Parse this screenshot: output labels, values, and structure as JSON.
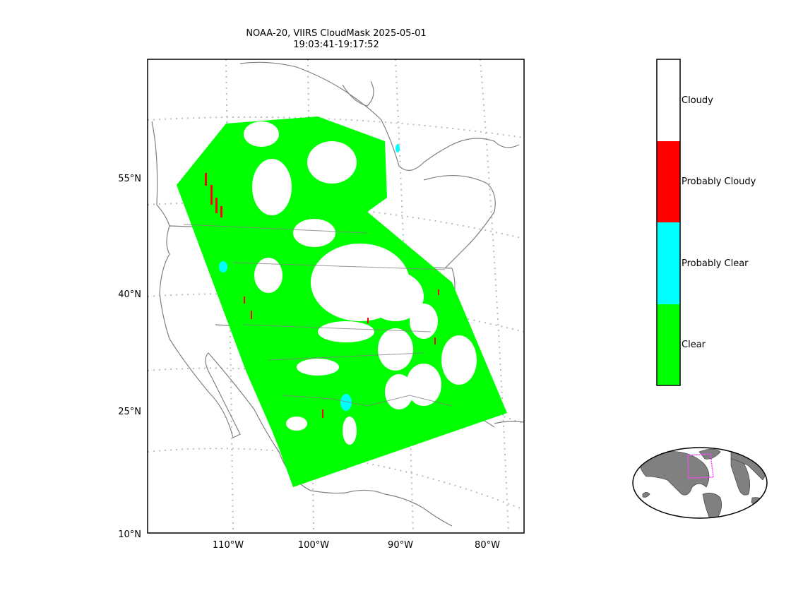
{
  "title": {
    "line1": "NOAA-20, VIIRS CloudMask 2025-05-01",
    "line2": "19:03:41-19:17:52"
  },
  "map": {
    "lat_labels": [
      "55°N",
      "40°N",
      "25°N",
      "10°N"
    ],
    "lon_labels": [
      "110°W",
      "100°W",
      "90°W",
      "80°W"
    ],
    "graticule_color": "#bbbbbb",
    "coastline_color": "#808080"
  },
  "legend": {
    "items": [
      {
        "label": "Cloudy",
        "color": "#ffffff"
      },
      {
        "label": "Probably Cloudy",
        "color": "#ff0000"
      },
      {
        "label": "Probably Clear",
        "color": "#00ffff"
      },
      {
        "label": "Clear",
        "color": "#00ff00"
      }
    ]
  },
  "inset": {
    "land_color": "#808080",
    "outline_color": "#ff44ff"
  }
}
